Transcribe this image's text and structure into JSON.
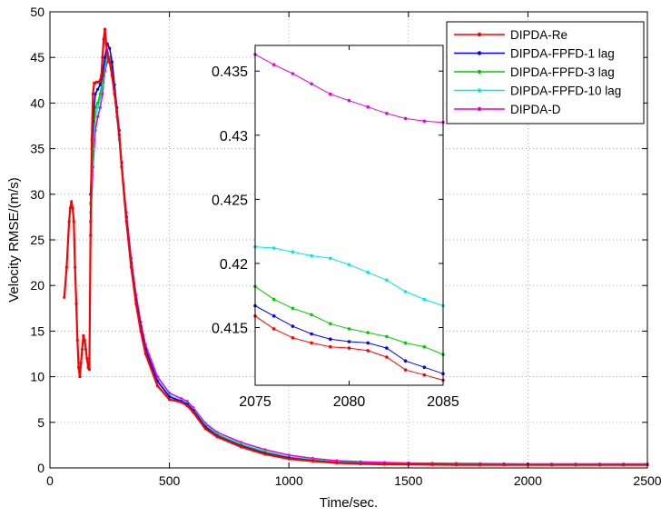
{
  "chart_data": [
    {
      "id": "main",
      "type": "line",
      "xlabel": "Time/sec.",
      "ylabel": "Velocity RMSE/(m/s)",
      "xlim": [
        0,
        2500
      ],
      "ylim": [
        0,
        50
      ],
      "xticks": [
        0,
        500,
        1000,
        1500,
        2000,
        2500
      ],
      "yticks": [
        0,
        5,
        10,
        15,
        20,
        25,
        30,
        35,
        40,
        45,
        50
      ],
      "grid": true,
      "legend_position": "top-right",
      "series": [
        {
          "name": "DIPDA-Re",
          "color": "#ff0000",
          "x": [
            60,
            70,
            80,
            85,
            90,
            95,
            100,
            105,
            110,
            115,
            120,
            125,
            130,
            135,
            140,
            145,
            150,
            155,
            160,
            165,
            170,
            175,
            180,
            185,
            190,
            195,
            200,
            205,
            210,
            215,
            220,
            225,
            230,
            235,
            240,
            245,
            250,
            260,
            270,
            280,
            290,
            300,
            320,
            340,
            360,
            380,
            400,
            450,
            500,
            550,
            575,
            600,
            650,
            700,
            800,
            900,
            1000,
            1100,
            1200,
            1300,
            1400,
            1500,
            1600,
            1700,
            1800,
            1900,
            2000,
            2100,
            2200,
            2300,
            2400,
            2500
          ],
          "y": [
            18.7,
            22,
            27,
            28.5,
            29.2,
            28.5,
            27,
            22,
            18,
            14,
            11,
            10,
            11.5,
            13,
            14.5,
            14,
            13,
            12,
            11,
            10.8,
            25.5,
            36,
            41,
            42.2,
            42.2,
            42.3,
            42.3,
            42.3,
            42.5,
            43,
            45,
            47,
            48.1,
            46.5,
            45.5,
            44.8,
            44.5,
            43,
            41,
            39,
            36.5,
            33,
            27,
            22,
            18,
            15,
            12.5,
            9,
            7.5,
            7.2,
            6.8,
            6.1,
            4.3,
            3.4,
            2.3,
            1.5,
            1.0,
            0.75,
            0.55,
            0.45,
            0.4,
            0.38,
            0.36,
            0.34,
            0.33,
            0.33,
            0.33,
            0.33,
            0.33,
            0.33,
            0.33,
            0.33
          ]
        },
        {
          "name": "DIPDA-FPFD-1 lag",
          "color": "#0000ff",
          "x": [
            170,
            180,
            190,
            200,
            210,
            220,
            230,
            240,
            250,
            260,
            270,
            280,
            290,
            300,
            320,
            340,
            360,
            380,
            400,
            450,
            500,
            550,
            575,
            600,
            650,
            700,
            800,
            900,
            1000,
            1100,
            1200,
            1300,
            1400,
            1500,
            1600,
            1700,
            1800,
            1900,
            2000,
            2100,
            2200,
            2300,
            2400,
            2500
          ],
          "y": [
            30,
            38,
            41,
            41.5,
            42,
            43,
            45,
            46.5,
            46,
            44.5,
            42,
            39.5,
            37,
            33.5,
            27.5,
            22.5,
            18.5,
            15.5,
            13,
            9.5,
            7.8,
            7.3,
            7,
            6.3,
            4.5,
            3.5,
            2.4,
            1.6,
            1.1,
            0.8,
            0.6,
            0.5,
            0.45,
            0.42,
            0.4,
            0.38,
            0.37,
            0.36,
            0.35,
            0.35,
            0.35,
            0.35,
            0.35,
            0.35
          ]
        },
        {
          "name": "DIPDA-FPFD-3 lag",
          "color": "#00cc00",
          "x": [
            170,
            180,
            190,
            200,
            210,
            220,
            230,
            240,
            250,
            260,
            270,
            280,
            290,
            300,
            320,
            340,
            360,
            380,
            400,
            450,
            500,
            550,
            575,
            600,
            650,
            700,
            800,
            900,
            1000,
            1100,
            1200,
            1300,
            1400,
            1500,
            1600,
            1700,
            1800,
            1900,
            2000,
            2100,
            2200,
            2300,
            2400,
            2500
          ],
          "y": [
            29,
            36,
            39.5,
            40,
            41,
            42.5,
            44.5,
            45.5,
            45,
            44,
            41.5,
            39,
            36.5,
            33,
            27.5,
            22.5,
            18.5,
            15.5,
            13,
            9.5,
            7.8,
            7.3,
            7,
            6.3,
            4.6,
            3.6,
            2.5,
            1.7,
            1.15,
            0.85,
            0.62,
            0.52,
            0.46,
            0.43,
            0.41,
            0.39,
            0.38,
            0.37,
            0.36,
            0.36,
            0.36,
            0.36,
            0.36,
            0.36
          ]
        },
        {
          "name": "DIPDA-FPFD-10 lag",
          "color": "#00e5e5",
          "x": [
            170,
            180,
            190,
            200,
            210,
            220,
            230,
            240,
            250,
            260,
            270,
            280,
            290,
            300,
            320,
            340,
            360,
            380,
            400,
            450,
            500,
            550,
            575,
            600,
            650,
            700,
            800,
            900,
            1000,
            1100,
            1200,
            1300,
            1400,
            1500,
            1600,
            1700,
            1800,
            1900,
            2000,
            2100,
            2200,
            2300,
            2400,
            2500
          ],
          "y": [
            28,
            35,
            38.5,
            39.5,
            40.5,
            42,
            44,
            45,
            44.5,
            43.5,
            41,
            38.5,
            36,
            33,
            27.5,
            22.5,
            18.5,
            15.5,
            13,
            9.6,
            7.9,
            7.4,
            7.1,
            6.4,
            4.7,
            3.7,
            2.6,
            1.8,
            1.2,
            0.9,
            0.65,
            0.55,
            0.48,
            0.45,
            0.43,
            0.41,
            0.4,
            0.39,
            0.39,
            0.39,
            0.39,
            0.39,
            0.39,
            0.39
          ]
        },
        {
          "name": "DIPDA-D",
          "color": "#e600e6",
          "x": [
            170,
            180,
            190,
            200,
            210,
            220,
            230,
            240,
            250,
            260,
            270,
            280,
            290,
            300,
            320,
            340,
            360,
            380,
            400,
            450,
            500,
            550,
            575,
            600,
            650,
            700,
            800,
            900,
            1000,
            1100,
            1200,
            1300,
            1400,
            1500,
            1600,
            1700,
            1800,
            1900,
            2000,
            2100,
            2200,
            2300,
            2400,
            2500
          ],
          "y": [
            27,
            33,
            37,
            38.5,
            39.5,
            41,
            43.5,
            44.5,
            44.5,
            43.5,
            41,
            38.5,
            36,
            33,
            28,
            23,
            19,
            16,
            13.5,
            10,
            8.2,
            7.6,
            7.3,
            6.6,
            4.9,
            3.9,
            2.8,
            2.0,
            1.4,
            1.05,
            0.8,
            0.68,
            0.6,
            0.55,
            0.52,
            0.5,
            0.48,
            0.46,
            0.45,
            0.44,
            0.44,
            0.44,
            0.44,
            0.44
          ]
        }
      ]
    },
    {
      "id": "inset",
      "type": "line",
      "xlim": [
        2075,
        2085
      ],
      "ylim": [
        0.4105,
        0.437
      ],
      "xticks": [
        2075,
        2080,
        2085
      ],
      "yticks": [
        0.415,
        0.42,
        0.425,
        0.43,
        0.435
      ],
      "ytick_labels": [
        "0.415",
        "0.42",
        "0.425",
        "0.43",
        "0.435"
      ],
      "grid": false,
      "series": [
        {
          "name": "DIPDA-Re",
          "color": "#ff0000",
          "x": [
            2075,
            2076,
            2077,
            2078,
            2079,
            2080,
            2081,
            2082,
            2083,
            2084,
            2085
          ],
          "y": [
            0.4159,
            0.4149,
            0.4142,
            0.4138,
            0.4135,
            0.4134,
            0.4132,
            0.4127,
            0.4117,
            0.4113,
            0.4109
          ]
        },
        {
          "name": "DIPDA-FPFD-1 lag",
          "color": "#0000ff",
          "x": [
            2075,
            2076,
            2077,
            2078,
            2079,
            2080,
            2081,
            2082,
            2083,
            2084,
            2085
          ],
          "y": [
            0.4167,
            0.4159,
            0.4151,
            0.4145,
            0.4141,
            0.4139,
            0.4138,
            0.4134,
            0.4124,
            0.4119,
            0.4114
          ]
        },
        {
          "name": "DIPDA-FPFD-3 lag",
          "color": "#00cc00",
          "x": [
            2075,
            2076,
            2077,
            2078,
            2079,
            2080,
            2081,
            2082,
            2083,
            2084,
            2085
          ],
          "y": [
            0.4182,
            0.4172,
            0.4165,
            0.416,
            0.4153,
            0.4149,
            0.4146,
            0.4143,
            0.4138,
            0.4135,
            0.4129
          ]
        },
        {
          "name": "DIPDA-FPFD-10 lag",
          "color": "#00e5e5",
          "x": [
            2075,
            2076,
            2077,
            2078,
            2079,
            2080,
            2081,
            2082,
            2083,
            2084,
            2085
          ],
          "y": [
            0.4213,
            0.4212,
            0.4209,
            0.4206,
            0.4204,
            0.4199,
            0.4193,
            0.4187,
            0.4178,
            0.4172,
            0.4167
          ]
        },
        {
          "name": "DIPDA-D",
          "color": "#e600e6",
          "x": [
            2075,
            2076,
            2077,
            2078,
            2079,
            2080,
            2081,
            2082,
            2083,
            2084,
            2085
          ],
          "y": [
            0.4363,
            0.4355,
            0.4348,
            0.434,
            0.4332,
            0.4327,
            0.4322,
            0.4317,
            0.4313,
            0.4311,
            0.431
          ]
        }
      ]
    }
  ]
}
